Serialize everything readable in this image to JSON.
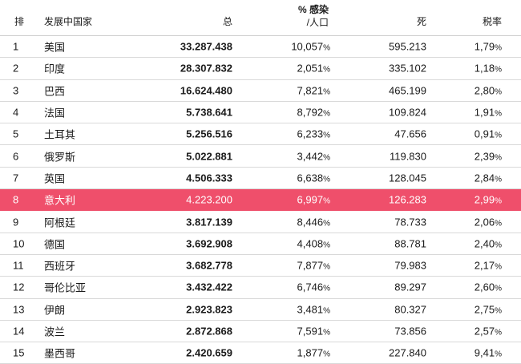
{
  "header": {
    "rank": "排",
    "country": "发展中国家",
    "total": "总",
    "pct_line1": "% 感染",
    "pct_line2": "/人口",
    "deaths": "死",
    "rate": "税率"
  },
  "rows": [
    {
      "rank": "1",
      "country": "美国",
      "total": "33.287.438",
      "pct": "10,057",
      "deaths": "595.213",
      "rate": "1,79"
    },
    {
      "rank": "2",
      "country": "印度",
      "total": "28.307.832",
      "pct": "2,051",
      "deaths": "335.102",
      "rate": "1,18"
    },
    {
      "rank": "3",
      "country": "巴西",
      "total": "16.624.480",
      "pct": "7,821",
      "deaths": "465.199",
      "rate": "2,80"
    },
    {
      "rank": "4",
      "country": "法国",
      "total": "5.738.641",
      "pct": "8,792",
      "deaths": "109.824",
      "rate": "1,91"
    },
    {
      "rank": "5",
      "country": "土耳其",
      "total": "5.256.516",
      "pct": "6,233",
      "deaths": "47.656",
      "rate": "0,91"
    },
    {
      "rank": "6",
      "country": "俄罗斯",
      "total": "5.022.881",
      "pct": "3,442",
      "deaths": "119.830",
      "rate": "2,39"
    },
    {
      "rank": "7",
      "country": "英国",
      "total": "4.506.333",
      "pct": "6,638",
      "deaths": "128.045",
      "rate": "2,84"
    },
    {
      "rank": "8",
      "country": "意大利",
      "total": "4.223.200",
      "pct": "6,997",
      "deaths": "126.283",
      "rate": "2,99"
    },
    {
      "rank": "9",
      "country": "阿根廷",
      "total": "3.817.139",
      "pct": "8,446",
      "deaths": "78.733",
      "rate": "2,06"
    },
    {
      "rank": "10",
      "country": "德国",
      "total": "3.692.908",
      "pct": "4,408",
      "deaths": "88.781",
      "rate": "2,40"
    },
    {
      "rank": "11",
      "country": "西班牙",
      "total": "3.682.778",
      "pct": "7,877",
      "deaths": "79.983",
      "rate": "2,17"
    },
    {
      "rank": "12",
      "country": "哥伦比亚",
      "total": "3.432.422",
      "pct": "6,746",
      "deaths": "89.297",
      "rate": "2,60"
    },
    {
      "rank": "13",
      "country": "伊朗",
      "total": "2.923.823",
      "pct": "3,481",
      "deaths": "80.327",
      "rate": "2,75"
    },
    {
      "rank": "14",
      "country": "波兰",
      "total": "2.872.868",
      "pct": "7,591",
      "deaths": "73.856",
      "rate": "2,57"
    },
    {
      "rank": "15",
      "country": "墨西哥",
      "total": "2.420.659",
      "pct": "1,877",
      "deaths": "227.840",
      "rate": "9,41"
    }
  ],
  "percent_symbol": "%",
  "highlight_rank": "8",
  "colors": {
    "highlight": "#ef4f6b",
    "text": "#1a1a1a",
    "divider": "#d9d9d9"
  }
}
